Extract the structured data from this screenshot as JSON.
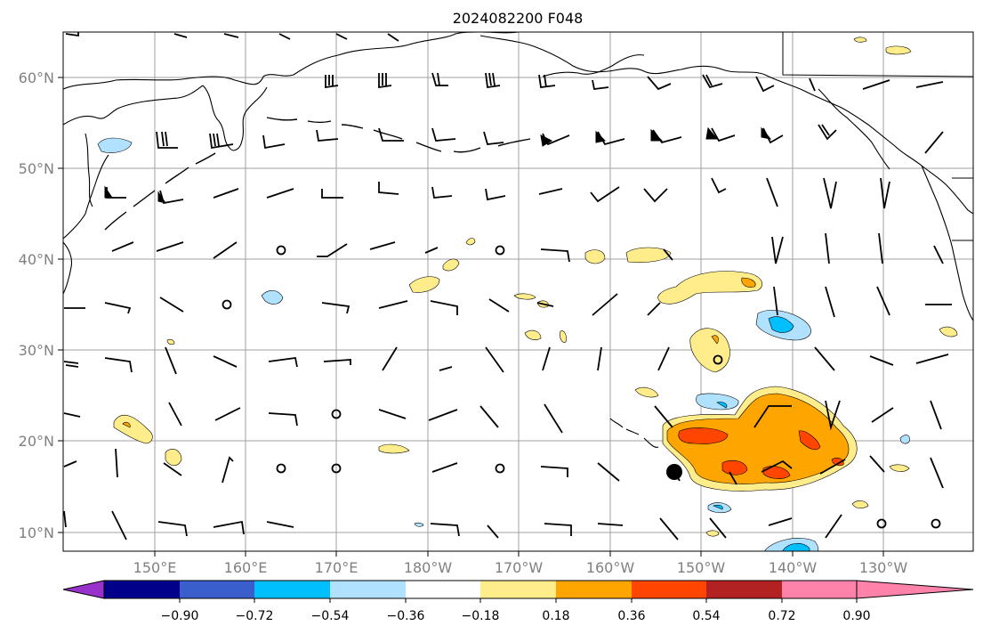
{
  "map": {
    "title": "2024082200 F048",
    "lon_labels": [
      "150°E",
      "160°E",
      "170°E",
      "180°W",
      "170°W",
      "160°W",
      "150°W",
      "140°W",
      "130°W"
    ],
    "lat_labels": [
      "60°N",
      "50°N",
      "40°N",
      "30°N",
      "20°N",
      "10°N"
    ],
    "lon_range": [
      140,
      242
    ],
    "lat_range": [
      8,
      65
    ]
  },
  "colorbar": {
    "colors": [
      "#9932cc",
      "#00008b",
      "#3a5fcd",
      "#00bfff",
      "#b0e2ff",
      "#ffffff",
      "#ffec8b",
      "#ffa500",
      "#ff4500",
      "#b22222",
      "#ff82ab"
    ],
    "tick_labels": [
      "−0.90",
      "−0.72",
      "−0.54",
      "−0.36",
      "−0.18",
      "0.18",
      "0.36",
      "0.54",
      "0.72",
      "0.90"
    ]
  },
  "marker": {
    "name": "storm-center",
    "lon": 208.5,
    "lat": 16.7
  }
}
